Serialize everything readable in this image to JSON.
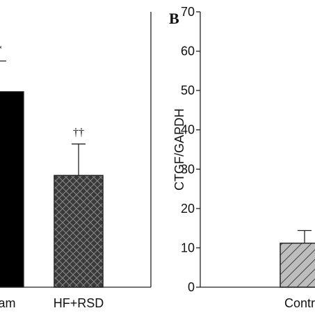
{
  "chart_data": [
    {
      "type": "bar",
      "categories": [
        "Sham",
        "HF+RSD"
      ],
      "values": [
        49.7,
        28.4
      ],
      "errors": [
        7.8,
        8
      ],
      "annotations": [
        "*",
        "††"
      ],
      "colors": [
        "#000000",
        "#3a3a3a"
      ],
      "ylim": [
        0,
        70
      ]
    },
    {
      "type": "bar",
      "panel_label": "B",
      "y_label": "CTGF/GAPDH",
      "categories": [
        "Control"
      ],
      "values": [
        11.2
      ],
      "errors": [
        3.2
      ],
      "colors": [
        "#bdbdbd"
      ],
      "ylim": [
        0,
        70
      ],
      "yticks": [
        0,
        10,
        20,
        30,
        40,
        50,
        60,
        70
      ]
    }
  ]
}
